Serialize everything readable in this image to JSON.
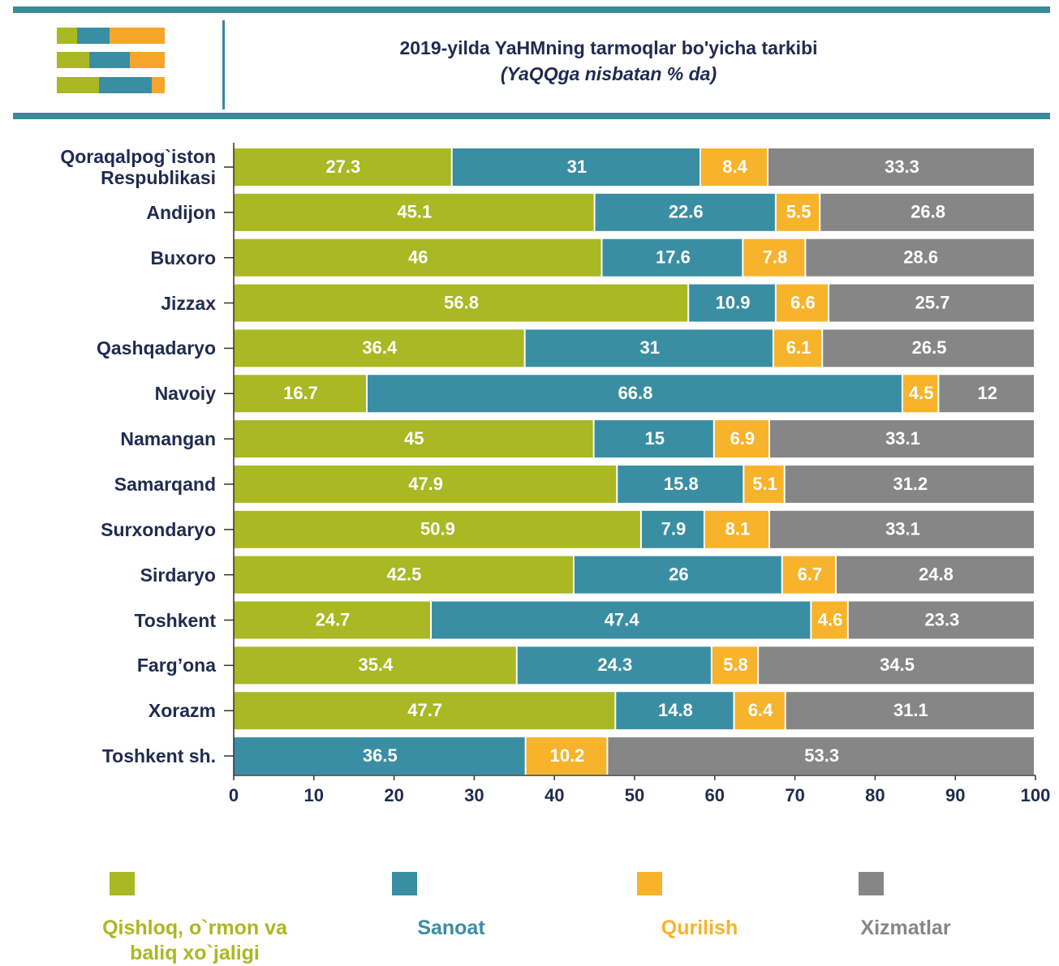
{
  "chart_data": {
    "type": "stacked_bar_horizontal",
    "title": "2019-yilda YaHMning tarmoqlar bo'yicha tarkibi",
    "subtitle": "(YaQQga nisbatan % da)",
    "categories": [
      "Qoraqalpog`iston Respublikasi",
      "Andijon",
      "Buxoro",
      "Jizzax",
      "Qashqadaryo",
      "Navoiy",
      "Namangan",
      "Samarqand",
      "Surxondaryo",
      "Sirdaryo",
      "Toshkent",
      "Farg’ona",
      "Xorazm",
      "Toshkent sh."
    ],
    "series": [
      {
        "name": "Qishloq, o`rmon va baliq xo`jaligi",
        "color": "#a9b823",
        "values": [
          27.3,
          45.1,
          46,
          56.8,
          36.4,
          16.7,
          45,
          47.9,
          50.9,
          42.5,
          24.7,
          35.4,
          47.7,
          null
        ]
      },
      {
        "name": "Sanoat",
        "color": "#3a8ea3",
        "values": [
          31,
          22.6,
          17.6,
          10.9,
          31,
          66.8,
          15,
          15.8,
          7.9,
          26,
          47.4,
          24.3,
          14.8,
          36.5
        ]
      },
      {
        "name": "Qurilish",
        "color": "#f7b32b",
        "values": [
          8.4,
          5.5,
          7.8,
          6.6,
          6.1,
          4.5,
          6.9,
          5.1,
          8.1,
          6.7,
          4.6,
          5.8,
          6.4,
          10.2
        ]
      },
      {
        "name": "Xizmatlar",
        "color": "#868686",
        "values": [
          33.3,
          26.8,
          28.6,
          25.7,
          26.5,
          12,
          33.1,
          31.2,
          33.1,
          24.8,
          23.3,
          34.5,
          31.1,
          53.3
        ]
      }
    ],
    "xlim": [
      0,
      100
    ],
    "xticks": [
      0,
      10,
      20,
      30,
      40,
      50,
      60,
      70,
      80,
      90,
      100
    ],
    "legend": "bottom"
  }
}
